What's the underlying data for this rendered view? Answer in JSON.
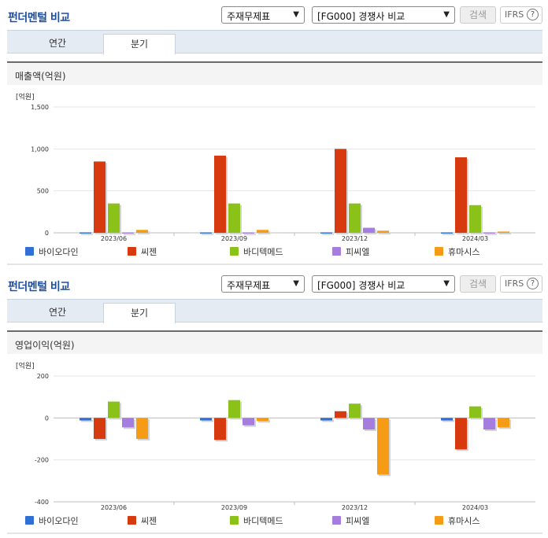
{
  "sections": [
    {
      "title": "펀더멘털 비교",
      "select1": "주재무제표",
      "select2": "[FG000] 경쟁사 비교",
      "search_label": "검색",
      "ifrs_label": "IFRS",
      "help_label": "?",
      "tabs": [
        "연간",
        "분기"
      ],
      "active_tab": "분기",
      "chart_title": "매출액(억원)"
    },
    {
      "title": "펀더멘털 비교",
      "select1": "주재무제표",
      "select2": "[FG000] 경쟁사 비교",
      "search_label": "검색",
      "ifrs_label": "IFRS",
      "help_label": "?",
      "tabs": [
        "연간",
        "분기"
      ],
      "active_tab": "분기",
      "chart_title": "영업이익(억원)"
    }
  ],
  "chart_data": [
    {
      "type": "bar",
      "unit_label": "[억원]",
      "categories": [
        "2023/06",
        "2023/09",
        "2023/12",
        "2024/03"
      ],
      "ylim": [
        0,
        1500
      ],
      "yticks": [
        0,
        500,
        1000,
        1500
      ],
      "ytick_labels": [
        "0",
        "500",
        "1,000",
        "1,500"
      ],
      "series": [
        {
          "name": "바이오다인",
          "color": "#2f6fd6",
          "values": [
            5,
            5,
            5,
            5
          ]
        },
        {
          "name": "씨젠",
          "color": "#d63a0e",
          "values": [
            850,
            920,
            1000,
            900
          ]
        },
        {
          "name": "바디텍메드",
          "color": "#8ac21a",
          "values": [
            350,
            350,
            350,
            330
          ]
        },
        {
          "name": "피씨엘",
          "color": "#a57ddf",
          "values": [
            5,
            5,
            60,
            5
          ]
        },
        {
          "name": "휴마시스",
          "color": "#f59b16",
          "values": [
            35,
            35,
            25,
            15
          ]
        }
      ]
    },
    {
      "type": "bar",
      "unit_label": "[억원]",
      "categories": [
        "2023/06",
        "2023/09",
        "2023/12",
        "2024/03"
      ],
      "ylim": [
        -400,
        200
      ],
      "yticks": [
        -400,
        -200,
        0,
        200
      ],
      "ytick_labels": [
        "-400",
        "-200",
        "0",
        "200"
      ],
      "series": [
        {
          "name": "바이오다인",
          "color": "#2f6fd6",
          "values": [
            -12,
            -12,
            -12,
            -12
          ]
        },
        {
          "name": "씨젠",
          "color": "#d63a0e",
          "values": [
            -100,
            -105,
            32,
            -150
          ]
        },
        {
          "name": "바디텍메드",
          "color": "#8ac21a",
          "values": [
            78,
            85,
            68,
            55
          ]
        },
        {
          "name": "피씨엘",
          "color": "#a57ddf",
          "values": [
            -45,
            -35,
            -55,
            -55
          ]
        },
        {
          "name": "휴마시스",
          "color": "#f59b16",
          "values": [
            -100,
            -15,
            -270,
            -45
          ]
        }
      ]
    }
  ]
}
